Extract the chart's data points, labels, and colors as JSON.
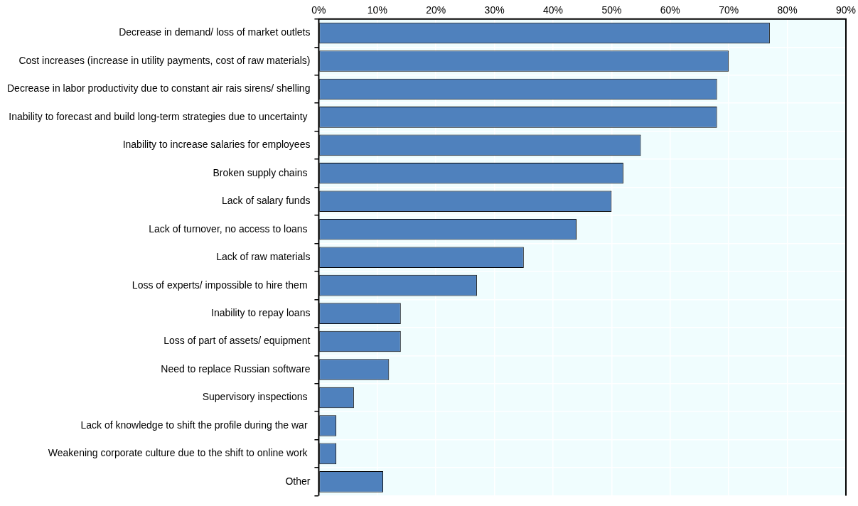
{
  "chart_data": {
    "type": "bar",
    "orientation": "horizontal",
    "categories": [
      "Decrease in demand/ loss of market outlets",
      "Cost increases (increase in utility payments, cost of raw materials)",
      "Decrease in labor productivity due to constant air rais sirens/ shelling",
      "Inability to forecast and build long-term strategies due to uncertainty ",
      "Inability to increase salaries for employees",
      "Broken supply chains ",
      "Lack of salary funds",
      "Lack of turnover, no access to loans ",
      "Lack of raw materials",
      "Loss of experts/ impossible to hire them ",
      "Inability to repay loans",
      "Loss of part of assets/ equipment",
      "Need to replace Russian software",
      "Supervisory inspections ",
      "Lack of knowledge to shift the profile during the war ",
      "Weakening corporate culture due to the shift to online work ",
      "Other"
    ],
    "values": [
      77,
      70,
      68,
      68,
      55,
      52,
      50,
      44,
      35,
      27,
      14,
      14,
      12,
      6,
      3,
      3,
      11
    ],
    "color": "#4f81bd",
    "xlim": [
      0,
      90
    ],
    "xticks": [
      {
        "value": 0,
        "label": "0%"
      },
      {
        "value": 10,
        "label": "10%"
      },
      {
        "value": 20,
        "label": "20%"
      },
      {
        "value": 30,
        "label": "30%"
      },
      {
        "value": 40,
        "label": "40%"
      },
      {
        "value": 50,
        "label": "50%"
      },
      {
        "value": 60,
        "label": "60%"
      },
      {
        "value": 70,
        "label": "70%"
      },
      {
        "value": 80,
        "label": "80%"
      },
      {
        "value": 90,
        "label": "90%"
      }
    ],
    "grid": true
  }
}
